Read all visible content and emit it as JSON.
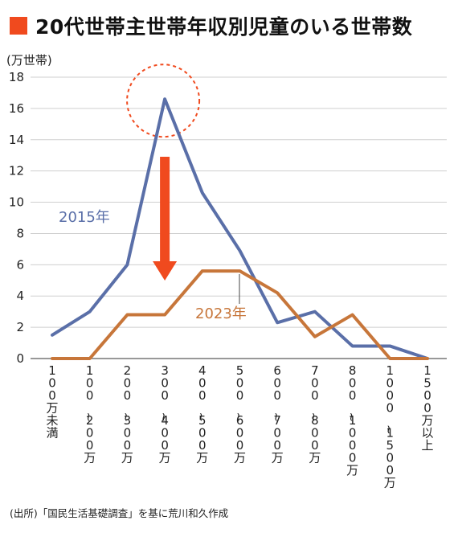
{
  "title": "20代世帯主世帯年収別児童のいる世帯数",
  "source": "(出所)「国民生活基礎調査」を基に荒川和久作成",
  "colors": {
    "accent": "#f04a1e",
    "series_2015": "#5a6fa8",
    "series_2023": "#c7763a"
  },
  "chart_data": {
    "type": "line",
    "ylabel": "(万世帯)",
    "ylim": [
      0,
      18
    ],
    "yticks": [
      0,
      2,
      4,
      6,
      8,
      10,
      12,
      14,
      16,
      18
    ],
    "grid": true,
    "categories": [
      "100万未満",
      "100~200万",
      "200~300万",
      "300~400万",
      "400~500万",
      "500~600万",
      "600~700万",
      "700~800万",
      "800~1000万",
      "1000~1500万",
      "1500万以上"
    ],
    "series": [
      {
        "name": "2015年",
        "values": [
          1.5,
          3.0,
          6.0,
          16.6,
          10.6,
          6.9,
          2.3,
          3.0,
          0.8,
          0.8,
          0.0
        ]
      },
      {
        "name": "2023年",
        "values": [
          0.0,
          0.0,
          2.8,
          2.8,
          5.6,
          5.6,
          4.2,
          1.4,
          2.8,
          0.0,
          0.0
        ]
      }
    ]
  }
}
